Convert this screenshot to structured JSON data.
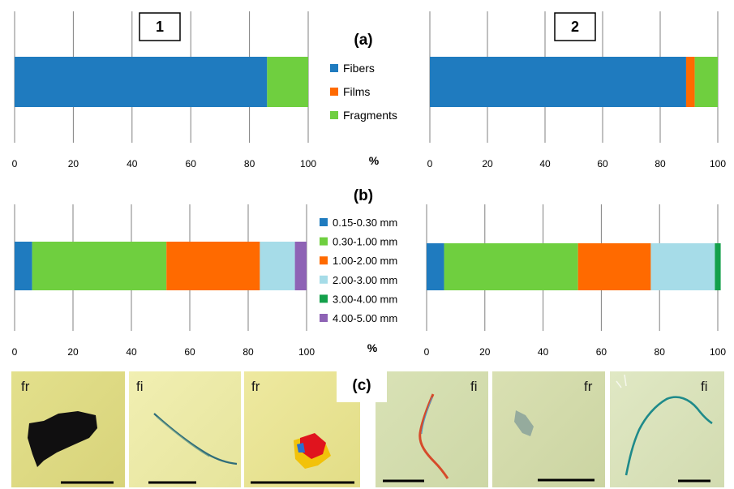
{
  "panel_labels": {
    "a": "(a)",
    "b": "(b)",
    "c": "(c)"
  },
  "x_unit": "%",
  "colors": {
    "Fibers": "#1f7bbf",
    "Films": "#ff6a00",
    "Fragments": "#6fcf3f",
    "0.15-0.30 mm": "#1f7bbf",
    "0.30-1.00 mm": "#6fcf3f",
    "1.00-2.00 mm": "#ff6a00",
    "2.00-3.00 mm": "#a6dce8",
    "3.00-4.00 mm": "#13a04a",
    "4.00-5.00 mm": "#8e63b5",
    "gridline": "#808080"
  },
  "chart_data": [
    {
      "id": "a1",
      "type": "bar",
      "orientation": "horizontal",
      "stacked": true,
      "panel": "(a)",
      "site": "1",
      "xlabel": "%",
      "xlim": [
        0,
        100
      ],
      "xticks": [
        "0",
        "20",
        "40",
        "60",
        "80",
        "100"
      ],
      "grid": true,
      "series": [
        {
          "name": "Fibers",
          "values": [
            86
          ]
        },
        {
          "name": "Films",
          "values": [
            0
          ]
        },
        {
          "name": "Fragments",
          "values": [
            14
          ]
        }
      ]
    },
    {
      "id": "a2",
      "type": "bar",
      "orientation": "horizontal",
      "stacked": true,
      "panel": "(a)",
      "site": "2",
      "xlabel": "%",
      "xlim": [
        0,
        100
      ],
      "xticks": [
        "0",
        "20",
        "40",
        "60",
        "80",
        "100"
      ],
      "grid": true,
      "series": [
        {
          "name": "Fibers",
          "values": [
            89
          ]
        },
        {
          "name": "Films",
          "values": [
            3
          ]
        },
        {
          "name": "Fragments",
          "values": [
            8
          ]
        }
      ]
    },
    {
      "id": "b1",
      "type": "bar",
      "orientation": "horizontal",
      "stacked": true,
      "panel": "(b)",
      "site": "1",
      "xlabel": "%",
      "xlim": [
        0,
        100
      ],
      "xticks": [
        "0",
        "20",
        "40",
        "60",
        "80",
        "100"
      ],
      "grid": true,
      "series": [
        {
          "name": "0.15-0.30 mm",
          "values": [
            6
          ]
        },
        {
          "name": "0.30-1.00 mm",
          "values": [
            46
          ]
        },
        {
          "name": "1.00-2.00 mm",
          "values": [
            32
          ]
        },
        {
          "name": "2.00-3.00 mm",
          "values": [
            12
          ]
        },
        {
          "name": "3.00-4.00 mm",
          "values": [
            0
          ]
        },
        {
          "name": "4.00-5.00 mm",
          "values": [
            4
          ]
        }
      ]
    },
    {
      "id": "b2",
      "type": "bar",
      "orientation": "horizontal",
      "stacked": true,
      "panel": "(b)",
      "site": "2",
      "xlabel": "%",
      "xlim": [
        0,
        100
      ],
      "xticks": [
        "0",
        "20",
        "40",
        "60",
        "80",
        "100"
      ],
      "grid": true,
      "series": [
        {
          "name": "0.15-0.30 mm",
          "values": [
            6
          ]
        },
        {
          "name": "0.30-1.00 mm",
          "values": [
            46
          ]
        },
        {
          "name": "1.00-2.00 mm",
          "values": [
            25
          ]
        },
        {
          "name": "2.00-3.00 mm",
          "values": [
            22
          ]
        },
        {
          "name": "3.00-4.00 mm",
          "values": [
            2
          ]
        },
        {
          "name": "4.00-5.00 mm",
          "values": [
            0
          ]
        }
      ]
    }
  ],
  "legend_a": [
    "Fibers",
    "Films",
    "Fragments"
  ],
  "legend_b": [
    "0.15-0.30 mm",
    "0.30-1.00 mm",
    "1.00-2.00 mm",
    "2.00-3.00 mm",
    "3.00-4.00 mm",
    "4.00-5.00 mm"
  ],
  "photos": [
    {
      "label": "fr",
      "kind": "dark-fragment"
    },
    {
      "label": "fi",
      "kind": "blue-fiber"
    },
    {
      "label": "fr",
      "kind": "colored-fragment"
    },
    {
      "label": "fi",
      "kind": "red-fiber"
    },
    {
      "label": "fr",
      "kind": "pale-fragment"
    },
    {
      "label": "fi",
      "kind": "teal-fiber"
    }
  ]
}
